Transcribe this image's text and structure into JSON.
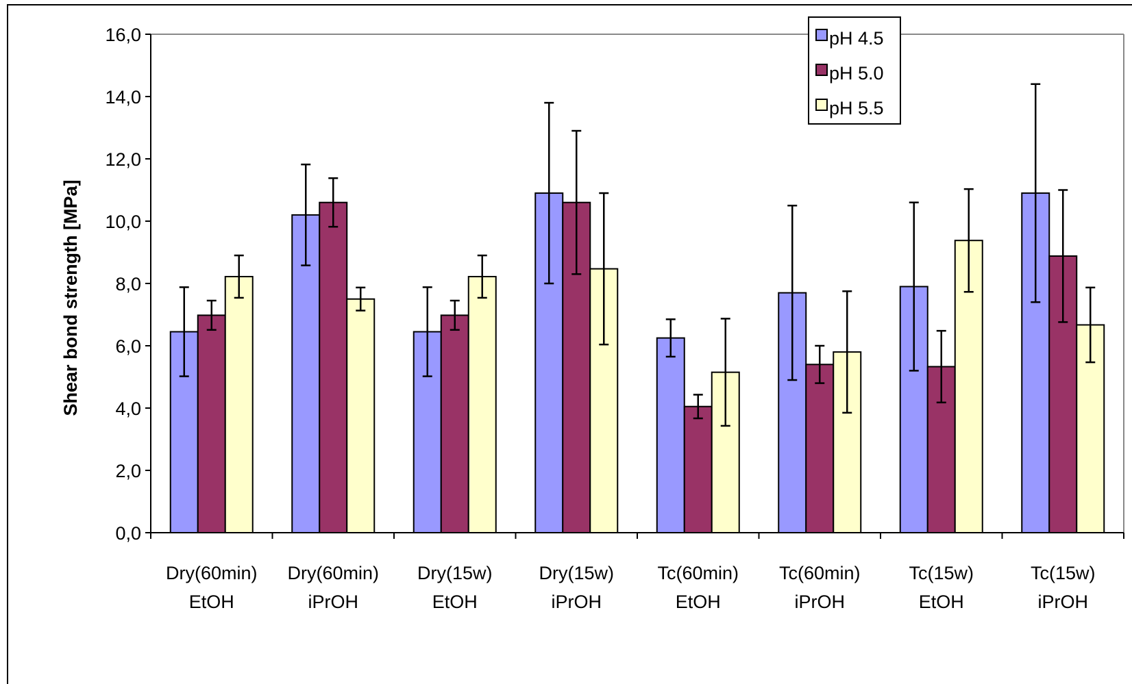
{
  "chart_data": {
    "type": "bar",
    "title": "",
    "xlabel": "",
    "ylabel": "Shear bond strength [MPa]",
    "ylim": [
      0,
      16
    ],
    "yticks": [
      "0,0",
      "2,0",
      "4,0",
      "6,0",
      "8,0",
      "10,0",
      "12,0",
      "14,0",
      "16,0"
    ],
    "grid": false,
    "legend_position": "top-right",
    "categories": [
      [
        "Dry(60min)",
        "EtOH"
      ],
      [
        "Dry(60min)",
        "iPrOH"
      ],
      [
        "Dry(15w)",
        "EtOH"
      ],
      [
        "Dry(15w)",
        "iPrOH"
      ],
      [
        "Tc(60min)",
        "EtOH"
      ],
      [
        "Tc(60min)",
        "iPrOH"
      ],
      [
        "Tc(15w)",
        "EtOH"
      ],
      [
        "Tc(15w)",
        "iPrOH"
      ]
    ],
    "series": [
      {
        "name": "pH 4.5",
        "color": "#9999FF",
        "values": [
          6.45,
          10.2,
          6.45,
          10.9,
          6.25,
          7.7,
          7.9,
          10.9
        ],
        "errors": [
          1.43,
          1.62,
          1.43,
          2.9,
          0.6,
          2.8,
          2.7,
          3.5
        ]
      },
      {
        "name": "pH 5.0",
        "color": "#993366",
        "values": [
          6.98,
          10.6,
          6.98,
          10.6,
          4.05,
          5.4,
          5.33,
          8.88
        ],
        "errors": [
          0.47,
          0.78,
          0.47,
          2.3,
          0.38,
          0.6,
          1.15,
          2.12
        ]
      },
      {
        "name": "pH 5.5",
        "color": "#FFFFCC",
        "values": [
          8.22,
          7.5,
          8.22,
          8.47,
          5.15,
          5.8,
          9.38,
          6.67
        ],
        "errors": [
          0.68,
          0.37,
          0.68,
          2.43,
          1.72,
          1.95,
          1.65,
          1.2
        ]
      }
    ]
  }
}
